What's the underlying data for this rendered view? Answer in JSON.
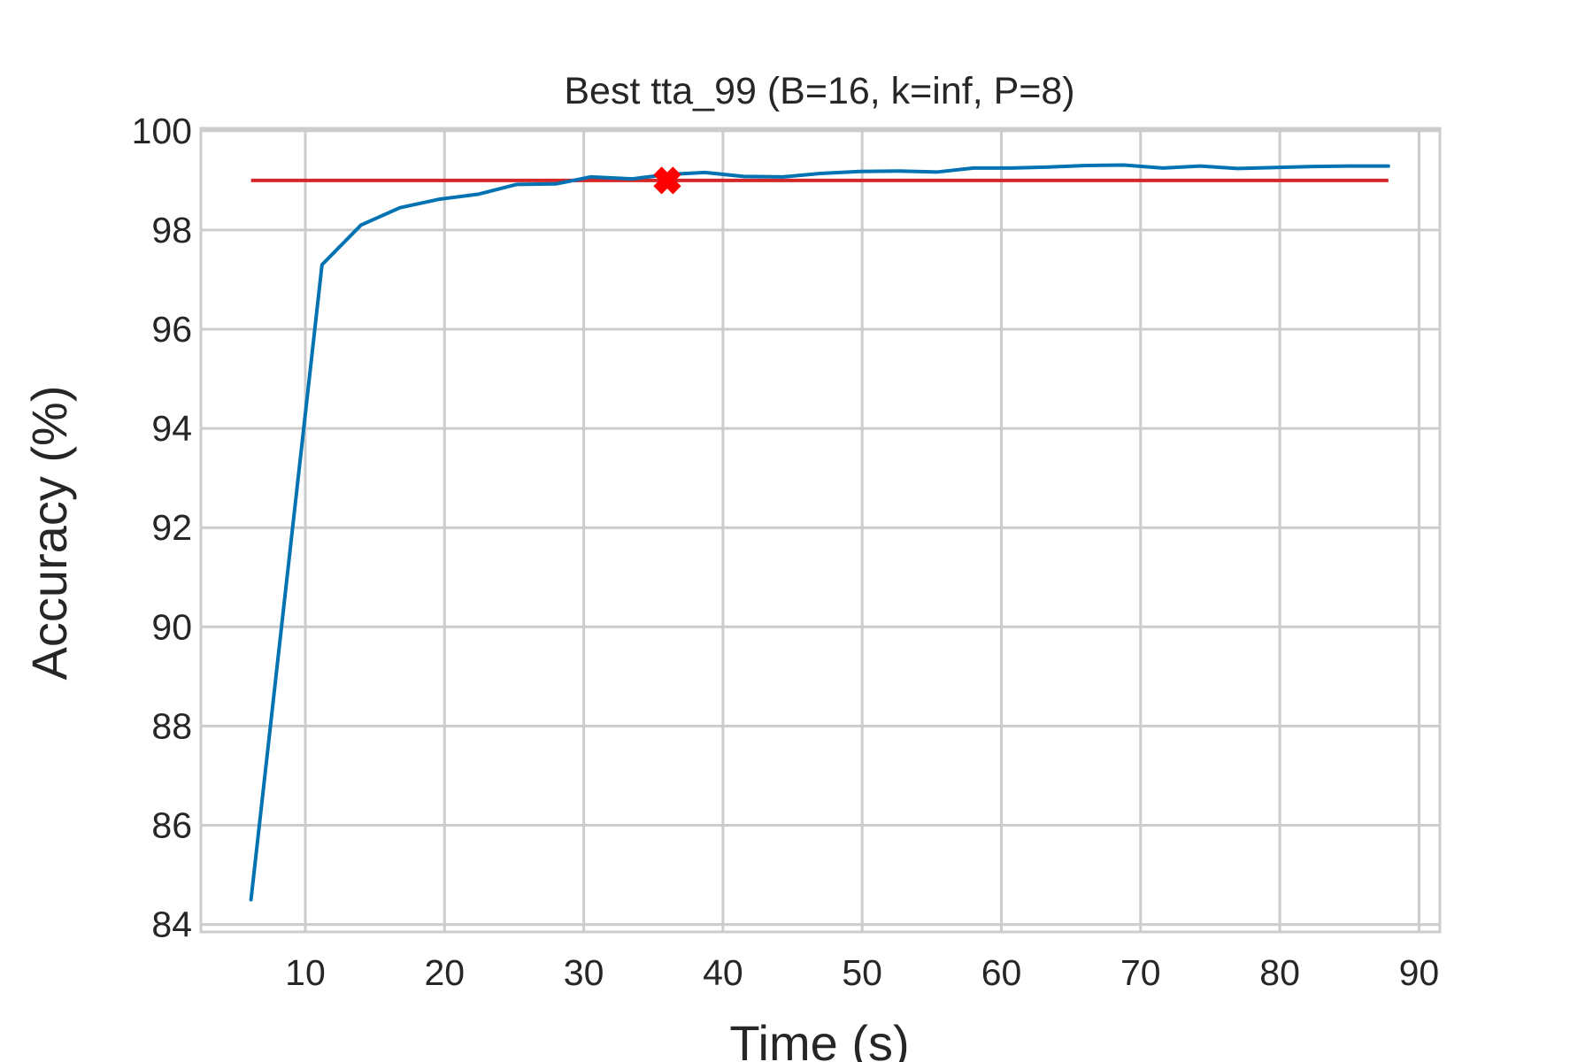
{
  "chart_data": {
    "type": "line",
    "title": "Best tta_99 (B=16, k=inf, P=8)",
    "xlabel": "Time (s)",
    "ylabel": "Accuracy (%)",
    "xlim": [
      2.5,
      91.5
    ],
    "ylim": [
      83.85,
      100.05
    ],
    "xticks": [
      10,
      20,
      30,
      40,
      50,
      60,
      70,
      80,
      90
    ],
    "yticks": [
      84,
      86,
      88,
      90,
      92,
      94,
      96,
      98,
      100
    ],
    "grid": true,
    "series": [
      {
        "color": "#0072b2",
        "x": [
          6.1,
          11.2,
          14.0,
          16.8,
          19.6,
          22.4,
          25.2,
          28.0,
          30.5,
          33.5,
          36.0,
          38.7,
          41.5,
          44.3,
          47.0,
          49.8,
          52.6,
          55.4,
          58.0,
          60.7,
          63.4,
          66.1,
          68.8,
          71.6,
          74.3,
          77.0,
          79.7,
          82.4,
          85.1,
          87.8
        ],
        "y": [
          84.5,
          97.3,
          98.1,
          98.45,
          98.62,
          98.72,
          98.92,
          98.93,
          99.07,
          99.03,
          99.12,
          99.16,
          99.08,
          99.07,
          99.14,
          99.18,
          99.19,
          99.17,
          99.25,
          99.25,
          99.27,
          99.3,
          99.31,
          99.25,
          99.29,
          99.24,
          99.26,
          99.28,
          99.29,
          99.29
        ]
      }
    ],
    "reference_line": {
      "y": 99.0,
      "x": [
        6.1,
        87.8
      ],
      "color": "#d62728"
    },
    "marker": {
      "x": 36.0,
      "y": 99.0,
      "shape": "x-marker",
      "color": "#ff0000"
    }
  }
}
